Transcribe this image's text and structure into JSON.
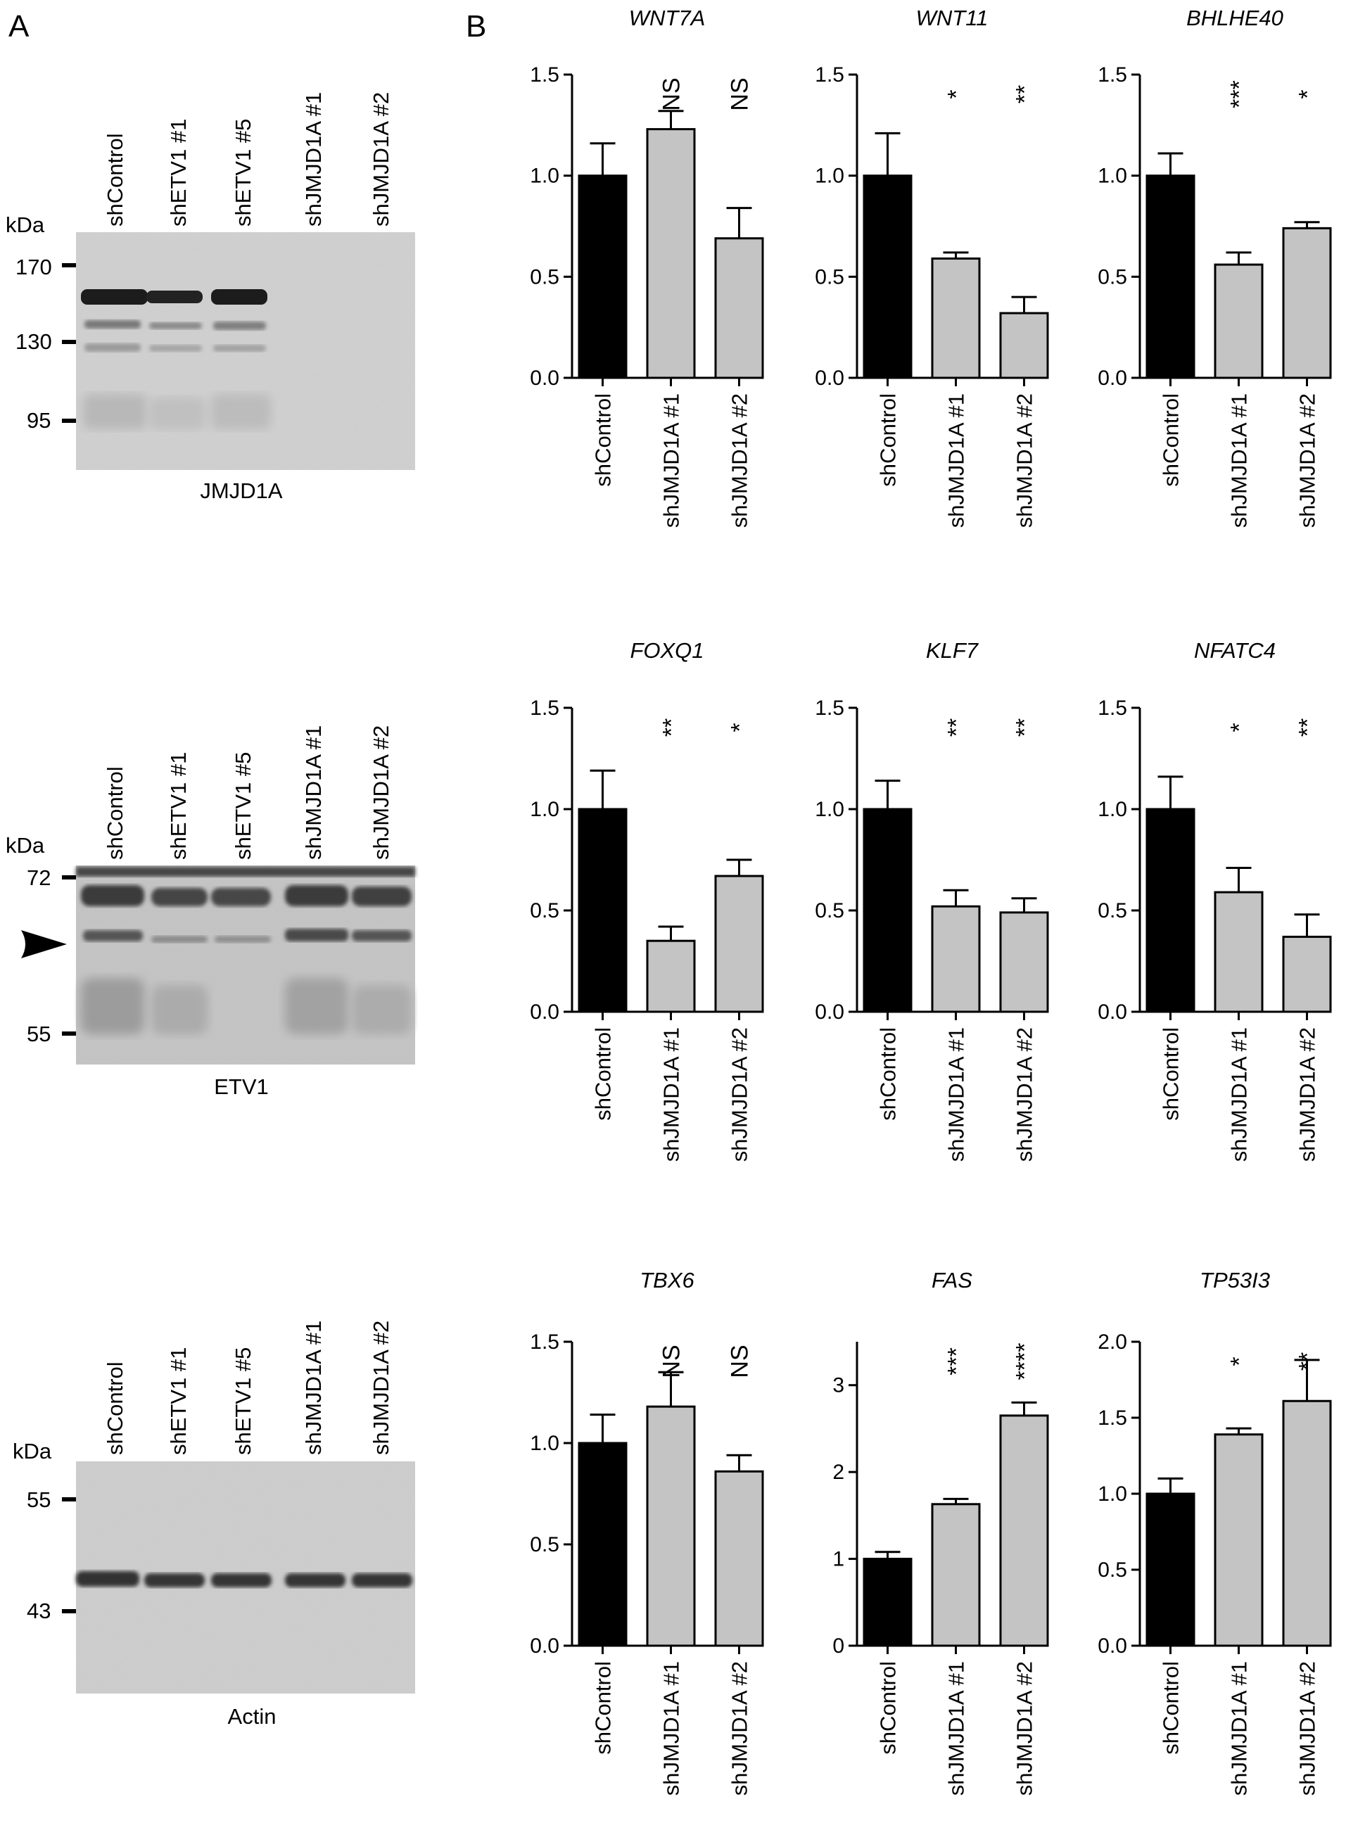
{
  "panel_labels": [
    "A",
    "B"
  ],
  "blots": [
    {
      "name": "JMJD1A",
      "kda_unit": "kDa",
      "lanes": [
        "shControl",
        "shETV1 #1",
        "shETV1 #5",
        "shJMJD1A #1",
        "shJMJD1A #2"
      ],
      "markers": [
        {
          "label": "170",
          "kda": 170
        },
        {
          "label": "130",
          "kda": 130
        },
        {
          "label": "95",
          "kda": 95
        }
      ],
      "arrow": false
    },
    {
      "name": "ETV1",
      "kda_unit": "kDa",
      "lanes": [
        "shControl",
        "shETV1 #1",
        "shETV1 #5",
        "shJMJD1A #1",
        "shJMJD1A #2"
      ],
      "markers": [
        {
          "label": "72",
          "kda": 72
        },
        {
          "label": "55",
          "kda": 55
        }
      ],
      "arrow": true
    },
    {
      "name": "Actin",
      "kda_unit": "kDa",
      "lanes": [
        "shControl",
        "shETV1 #1",
        "shETV1 #5",
        "shJMJD1A #1",
        "shJMJD1A #2"
      ],
      "markers": [
        {
          "label": "55",
          "kda": 55
        },
        {
          "label": "43",
          "kda": 43
        }
      ],
      "arrow": false
    }
  ],
  "colors": {
    "control_bar": "#000000",
    "knockdown_bar": "#c4c4c4",
    "axis": "#000000"
  },
  "chart_data": [
    {
      "type": "bar",
      "title": "WNT7A",
      "categories": [
        "shControl",
        "shJMJD1A #1",
        "shJMJD1A #2"
      ],
      "values": [
        1.0,
        1.23,
        0.69
      ],
      "errors": [
        0.16,
        0.09,
        0.15
      ],
      "significance": [
        "",
        "NS",
        "NS"
      ],
      "ylim": [
        0,
        1.5
      ],
      "yticks": [
        "0.0",
        "0.5",
        "1.0",
        "1.5"
      ]
    },
    {
      "type": "bar",
      "title": "WNT11",
      "categories": [
        "shControl",
        "shJMJD1A #1",
        "shJMJD1A #2"
      ],
      "values": [
        1.0,
        0.59,
        0.32
      ],
      "errors": [
        0.21,
        0.03,
        0.08
      ],
      "significance": [
        "",
        "*",
        "**"
      ],
      "ylim": [
        0,
        1.5
      ],
      "yticks": [
        "0.0",
        "0.5",
        "1.0",
        "1.5"
      ]
    },
    {
      "type": "bar",
      "title": "BHLHE40",
      "categories": [
        "shControl",
        "shJMJD1A #1",
        "shJMJD1A #2"
      ],
      "values": [
        1.0,
        0.56,
        0.74
      ],
      "errors": [
        0.11,
        0.06,
        0.03
      ],
      "significance": [
        "",
        "***",
        "*"
      ],
      "ylim": [
        0,
        1.5
      ],
      "yticks": [
        "0.0",
        "0.5",
        "1.0",
        "1.5"
      ]
    },
    {
      "type": "bar",
      "title": "FOXQ1",
      "categories": [
        "shControl",
        "shJMJD1A #1",
        "shJMJD1A #2"
      ],
      "values": [
        1.0,
        0.35,
        0.67
      ],
      "errors": [
        0.19,
        0.07,
        0.08
      ],
      "significance": [
        "",
        "**",
        "*"
      ],
      "ylim": [
        0,
        1.5
      ],
      "yticks": [
        "0.0",
        "0.5",
        "1.0",
        "1.5"
      ]
    },
    {
      "type": "bar",
      "title": "KLF7",
      "categories": [
        "shControl",
        "shJMJD1A #1",
        "shJMJD1A #2"
      ],
      "values": [
        1.0,
        0.52,
        0.49
      ],
      "errors": [
        0.14,
        0.08,
        0.07
      ],
      "significance": [
        "",
        "**",
        "**"
      ],
      "ylim": [
        0,
        1.5
      ],
      "yticks": [
        "0.0",
        "0.5",
        "1.0",
        "1.5"
      ]
    },
    {
      "type": "bar",
      "title": "NFATC4",
      "categories": [
        "shControl",
        "shJMJD1A #1",
        "shJMJD1A #2"
      ],
      "values": [
        1.0,
        0.59,
        0.37
      ],
      "errors": [
        0.16,
        0.12,
        0.11
      ],
      "significance": [
        "",
        "*",
        "**"
      ],
      "ylim": [
        0,
        1.5
      ],
      "yticks": [
        "0.0",
        "0.5",
        "1.0",
        "1.5"
      ]
    },
    {
      "type": "bar",
      "title": "TBX6",
      "categories": [
        "shControl",
        "shJMJD1A #1",
        "shJMJD1A #2"
      ],
      "values": [
        1.0,
        1.18,
        0.86
      ],
      "errors": [
        0.14,
        0.17,
        0.08
      ],
      "significance": [
        "",
        "NS",
        "NS"
      ],
      "ylim": [
        0,
        1.5
      ],
      "yticks": [
        "0.0",
        "0.5",
        "1.0",
        "1.5"
      ]
    },
    {
      "type": "bar",
      "title": "FAS",
      "categories": [
        "shControl",
        "shJMJD1A #1",
        "shJMJD1A #2"
      ],
      "values": [
        1.0,
        1.63,
        2.65
      ],
      "errors": [
        0.08,
        0.06,
        0.15
      ],
      "significance": [
        "",
        "***",
        "****"
      ],
      "ylim": [
        0,
        3.5
      ],
      "yticks": [
        "0",
        "1",
        "2",
        "3"
      ]
    },
    {
      "type": "bar",
      "title": "TP53I3",
      "categories": [
        "shControl",
        "shJMJD1A #1",
        "shJMJD1A #2"
      ],
      "values": [
        1.0,
        1.39,
        1.61
      ],
      "errors": [
        0.1,
        0.04,
        0.27
      ],
      "significance": [
        "",
        "*",
        "**"
      ],
      "ylim": [
        0,
        2.0
      ],
      "yticks": [
        "0.0",
        "0.5",
        "1.0",
        "1.5",
        "2.0"
      ]
    }
  ]
}
